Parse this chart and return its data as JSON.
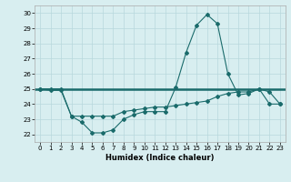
{
  "xlabel": "Humidex (Indice chaleur)",
  "x_values": [
    0,
    1,
    2,
    3,
    4,
    5,
    6,
    7,
    8,
    9,
    10,
    11,
    12,
    13,
    14,
    15,
    16,
    17,
    18,
    19,
    20,
    21,
    22,
    23
  ],
  "line1": [
    25.0,
    25.0,
    25.0,
    23.2,
    22.8,
    22.1,
    22.1,
    22.3,
    23.0,
    23.3,
    23.5,
    23.5,
    23.5,
    25.1,
    27.4,
    29.2,
    29.9,
    29.3,
    26.0,
    24.6,
    24.7,
    25.0,
    24.8,
    24.0
  ],
  "line2": [
    25.0,
    24.9,
    24.9,
    23.2,
    23.2,
    23.2,
    23.2,
    23.2,
    23.5,
    23.6,
    23.7,
    23.8,
    23.8,
    23.9,
    24.0,
    24.1,
    24.2,
    24.5,
    24.7,
    24.8,
    24.8,
    25.0,
    24.0,
    24.0
  ],
  "hline_y": 25.0,
  "line_color": "#1a6b6b",
  "bg_color": "#d8eef0",
  "grid_color": "#b8d8dc",
  "ylim": [
    21.5,
    30.5
  ],
  "yticks": [
    22,
    23,
    24,
    25,
    26,
    27,
    28,
    29,
    30
  ],
  "xticks": [
    0,
    1,
    2,
    3,
    4,
    5,
    6,
    7,
    8,
    9,
    10,
    11,
    12,
    13,
    14,
    15,
    16,
    17,
    18,
    19,
    20,
    21,
    22,
    23
  ]
}
